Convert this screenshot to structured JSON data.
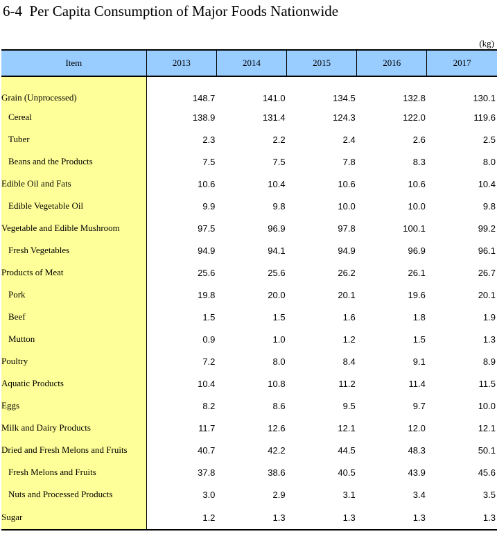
{
  "title": "6-4  Per Capita Consumption of Major Foods Nationwide",
  "unit": "(kg)",
  "columns": [
    "Item",
    "2013",
    "2014",
    "2015",
    "2016",
    "2017"
  ],
  "rows": [
    {
      "label": "Grain (Unprocessed)",
      "level": 0,
      "values": [
        "148.7",
        "141.0",
        "134.5",
        "132.8",
        "130.1"
      ]
    },
    {
      "label": "Cereal",
      "level": 1,
      "values": [
        "138.9",
        "131.4",
        "124.3",
        "122.0",
        "119.6"
      ]
    },
    {
      "label": "Tuber",
      "level": 1,
      "values": [
        "2.3",
        "2.2",
        "2.4",
        "2.6",
        "2.5"
      ]
    },
    {
      "label": "Beans and the Products",
      "level": 1,
      "values": [
        "7.5",
        "7.5",
        "7.8",
        "8.3",
        "8.0"
      ]
    },
    {
      "label": "Edible Oil and Fats",
      "level": 0,
      "values": [
        "10.6",
        "10.4",
        "10.6",
        "10.6",
        "10.4"
      ]
    },
    {
      "label": "Edible Vegetable Oil",
      "level": 1,
      "values": [
        "9.9",
        "9.8",
        "10.0",
        "10.0",
        "9.8"
      ]
    },
    {
      "label": "Vegetable and Edible Mushroom",
      "level": 0,
      "values": [
        "97.5",
        "96.9",
        "97.8",
        "100.1",
        "99.2"
      ]
    },
    {
      "label": "Fresh Vegetables",
      "level": 1,
      "values": [
        "94.9",
        "94.1",
        "94.9",
        "96.9",
        "96.1"
      ]
    },
    {
      "label": "Products of Meat",
      "level": 0,
      "values": [
        "25.6",
        "25.6",
        "26.2",
        "26.1",
        "26.7"
      ]
    },
    {
      "label": "Pork",
      "level": 1,
      "values": [
        "19.8",
        "20.0",
        "20.1",
        "19.6",
        "20.1"
      ]
    },
    {
      "label": "Beef",
      "level": 1,
      "values": [
        "1.5",
        "1.5",
        "1.6",
        "1.8",
        "1.9"
      ]
    },
    {
      "label": "Mutton",
      "level": 1,
      "values": [
        "0.9",
        "1.0",
        "1.2",
        "1.5",
        "1.3"
      ]
    },
    {
      "label": "Poultry",
      "level": 0,
      "values": [
        "7.2",
        "8.0",
        "8.4",
        "9.1",
        "8.9"
      ]
    },
    {
      "label": "Aquatic Products",
      "level": 0,
      "values": [
        "10.4",
        "10.8",
        "11.2",
        "11.4",
        "11.5"
      ]
    },
    {
      "label": "Eggs",
      "level": 0,
      "values": [
        "8.2",
        "8.6",
        "9.5",
        "9.7",
        "10.0"
      ]
    },
    {
      "label": "Milk and Dairy Products",
      "level": 0,
      "values": [
        "11.7",
        "12.6",
        "12.1",
        "12.0",
        "12.1"
      ]
    },
    {
      "label": "Dried and Fresh Melons and Fruits",
      "level": 0,
      "values": [
        "40.7",
        "42.2",
        "44.5",
        "48.3",
        "50.1"
      ]
    },
    {
      "label": "Fresh Melons and Fruits",
      "level": 1,
      "values": [
        "37.8",
        "38.6",
        "40.5",
        "43.9",
        "45.6"
      ]
    },
    {
      "label": "Nuts and Processed Products",
      "level": 1,
      "values": [
        "3.0",
        "2.9",
        "3.1",
        "3.4",
        "3.5"
      ]
    },
    {
      "label": "Sugar",
      "level": 0,
      "values": [
        "1.2",
        "1.3",
        "1.3",
        "1.3",
        "1.3"
      ]
    }
  ],
  "colors": {
    "header_bg": "#99ccff",
    "item_col_bg": "#ffff99"
  }
}
